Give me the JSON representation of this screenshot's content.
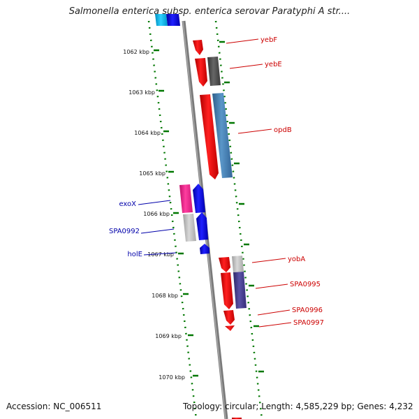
{
  "title": "Salmonella enterica subsp. enterica serovar Paratyphi A str....",
  "footer": {
    "accession": "Accession: NC_006511",
    "topology": "Topology: circular; Length: 4,585,229 bp; Genes: 4,232"
  },
  "colors": {
    "red": "#ff0000",
    "blue": "#0000ff",
    "dark_gray": "#555555",
    "steel_blue": "#4682b4",
    "magenta": "#ff1493",
    "light_gray": "#c0c0c0",
    "slate_blue": "#483d8b",
    "cyan": "#00bfff",
    "backbone": "#808080",
    "tick_green": "#007700",
    "label_red": "#cc0000",
    "label_blue": "#0000aa"
  },
  "ticks": [
    "1062 kbp",
    "1063 kbp",
    "1064 kbp",
    "1065 kbp",
    "1066 kbp",
    "1067 kbp",
    "1068 kbp",
    "1069 kbp",
    "1070 kbp"
  ],
  "genes_right": [
    {
      "name": "yebF"
    },
    {
      "name": "yebE"
    },
    {
      "name": "opdB"
    },
    {
      "name": "yobA"
    },
    {
      "name": "SPA0995"
    },
    {
      "name": "SPA0996"
    },
    {
      "name": "SPA0997"
    }
  ],
  "genes_left": [
    {
      "name": "exoX"
    },
    {
      "name": "SPA0992"
    },
    {
      "name": "holE"
    }
  ]
}
